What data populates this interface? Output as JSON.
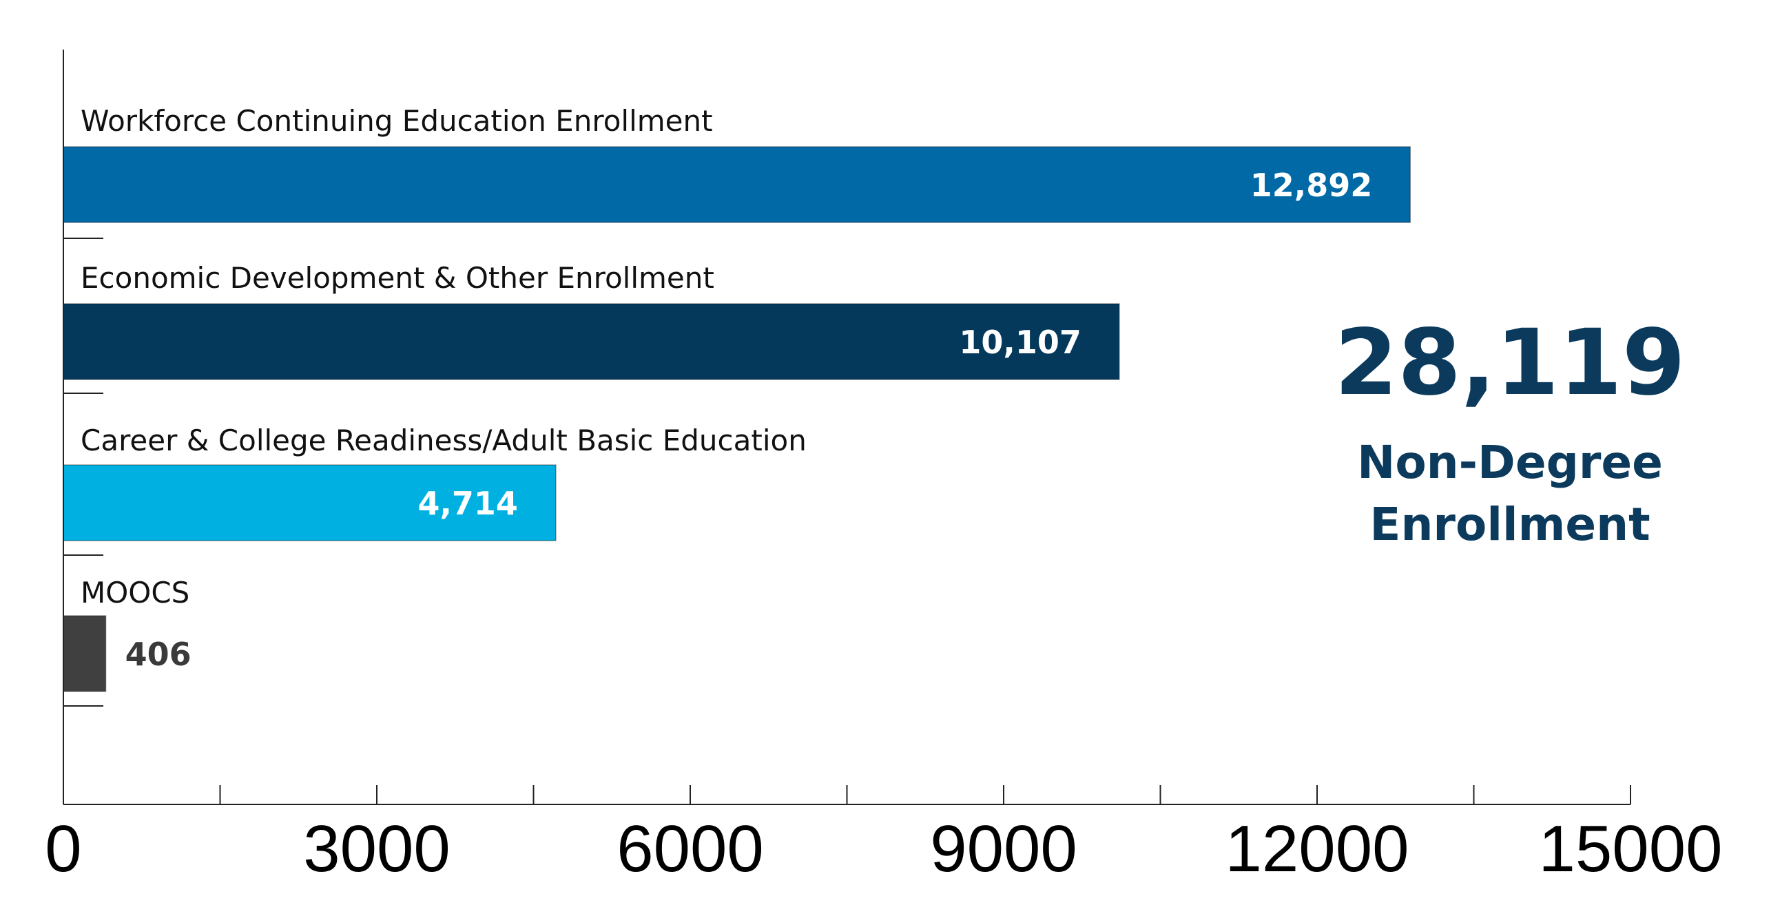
{
  "chart_data": {
    "type": "bar",
    "orientation": "horizontal",
    "categories": [
      "Workforce Continuing Education Enrollment",
      "Economic Development & Other Enrollment",
      "Career & College Readiness/Adult Basic Education",
      "MOOCS"
    ],
    "values": [
      12892,
      10107,
      4714,
      406
    ],
    "value_labels": [
      "12,892",
      "10,107",
      "4,714",
      "406"
    ],
    "bar_colors": [
      "#0069A6",
      "#04395B",
      "#00B0E0",
      "#404040"
    ],
    "value_label_colors": [
      "#ffffff",
      "#ffffff",
      "#ffffff",
      "#3a3a3a"
    ],
    "xlim": [
      0,
      15000
    ],
    "x_ticks": [
      0,
      1500,
      3000,
      4500,
      6000,
      7500,
      9000,
      10500,
      12000,
      13500,
      15000
    ],
    "x_tick_labels": [
      {
        "value": 0,
        "label": "0"
      },
      {
        "value": 3000,
        "label": "3000"
      },
      {
        "value": 6000,
        "label": "6000"
      },
      {
        "value": 9000,
        "label": "9000"
      },
      {
        "value": 12000,
        "label": "12000"
      },
      {
        "value": 15000,
        "label": "15000"
      }
    ],
    "grid": false,
    "legend": "none"
  },
  "summary": {
    "total_value": "28,119",
    "caption_line1": "Non-Degree",
    "caption_line2": "Enrollment",
    "color": "#0B3A5C"
  }
}
